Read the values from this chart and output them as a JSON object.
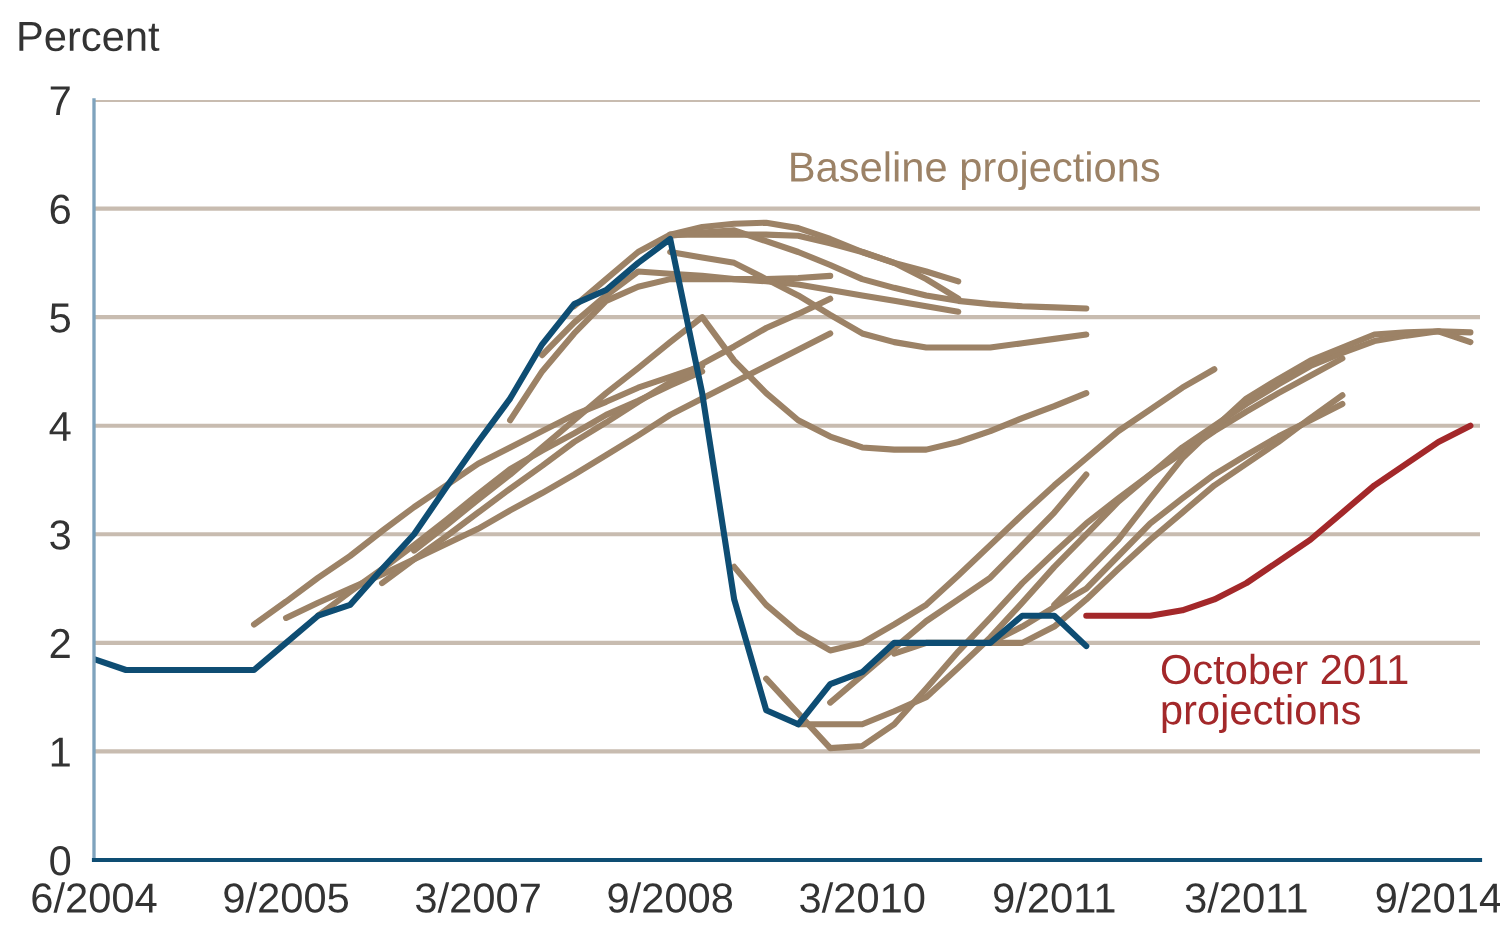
{
  "chart_data": {
    "type": "line",
    "ylabel": "Percent",
    "categories": [
      "6/2004",
      null,
      null,
      null,
      null,
      null,
      "9/2005",
      null,
      null,
      null,
      null,
      null,
      "3/2007",
      null,
      null,
      null,
      null,
      null,
      "9/2008",
      null,
      null,
      null,
      null,
      null,
      "3/2010",
      null,
      null,
      null,
      null,
      null,
      "9/2011",
      null,
      null,
      null,
      null,
      null,
      "3/2011",
      null,
      null,
      null,
      null,
      null,
      "9/2014",
      null
    ],
    "ylim": [
      0,
      7
    ],
    "yticks": [
      0,
      1,
      2,
      3,
      4,
      5,
      6,
      7
    ],
    "grid": "y",
    "legend": false,
    "marker": "none",
    "line_style": "solid",
    "series": [
      {
        "color": "#9c8266",
        "values": [
          null,
          null,
          null,
          null,
          null,
          2.17,
          2.38,
          2.6,
          2.8,
          3.03,
          3.25,
          3.45,
          3.65,
          3.8,
          3.95,
          4.1,
          4.22,
          4.35,
          4.45,
          4.55,
          null,
          null,
          null,
          null,
          null,
          null,
          null,
          null,
          null,
          null,
          null,
          null,
          null,
          null,
          null,
          null,
          null,
          null,
          null,
          null,
          null,
          null,
          null,
          null
        ]
      },
      {
        "color": "#9c8266",
        "values": [
          null,
          null,
          null,
          null,
          null,
          null,
          2.23,
          2.37,
          2.5,
          2.63,
          2.77,
          2.91,
          3.05,
          3.22,
          3.38,
          3.55,
          3.73,
          3.91,
          4.1,
          4.25,
          4.4,
          4.55,
          4.7,
          4.85,
          null,
          null,
          null,
          null,
          null,
          null,
          null,
          null,
          null,
          null,
          null,
          null,
          null,
          null,
          null,
          null,
          null,
          null,
          null,
          null
        ]
      },
      {
        "color": "#9c8266",
        "values": [
          null,
          null,
          null,
          null,
          null,
          null,
          null,
          2.25,
          2.47,
          2.68,
          2.9,
          3.13,
          3.37,
          3.6,
          3.77,
          3.93,
          4.1,
          4.23,
          4.37,
          4.5,
          null,
          null,
          null,
          null,
          null,
          null,
          null,
          null,
          null,
          null,
          null,
          null,
          null,
          null,
          null,
          null,
          null,
          null,
          null,
          null,
          null,
          null,
          null,
          null
        ]
      },
      {
        "color": "#9c8266",
        "values": [
          null,
          null,
          null,
          null,
          null,
          null,
          null,
          null,
          null,
          2.55,
          2.77,
          2.98,
          3.2,
          3.42,
          3.63,
          3.85,
          4.03,
          4.22,
          4.4,
          4.57,
          4.73,
          4.9,
          5.03,
          5.17,
          null,
          null,
          null,
          null,
          null,
          null,
          null,
          null,
          null,
          null,
          null,
          null,
          null,
          null,
          null,
          null,
          null,
          null,
          null,
          null
        ]
      },
      {
        "color": "#9c8266",
        "values": [
          null,
          null,
          null,
          null,
          null,
          null,
          null,
          null,
          null,
          null,
          2.85,
          3.08,
          3.32,
          3.55,
          3.8,
          4.05,
          4.3,
          4.53,
          4.77,
          5.0,
          4.6,
          4.3,
          4.05,
          3.9,
          3.8,
          3.78,
          3.78,
          3.85,
          3.95,
          4.07,
          4.18,
          4.3,
          null,
          null,
          null,
          null,
          null,
          null,
          null,
          null,
          null,
          null,
          null,
          null
        ]
      },
      {
        "color": "#9c8266",
        "values": [
          null,
          null,
          null,
          null,
          null,
          null,
          null,
          null,
          null,
          null,
          null,
          null,
          null,
          4.05,
          4.5,
          4.85,
          5.15,
          5.28,
          5.35,
          5.35,
          5.35,
          5.35,
          5.36,
          5.38,
          null,
          null,
          null,
          null,
          null,
          null,
          null,
          null,
          null,
          null,
          null,
          null,
          null,
          null,
          null,
          null,
          null,
          null,
          null,
          null
        ]
      },
      {
        "color": "#9c8266",
        "values": [
          null,
          null,
          null,
          null,
          null,
          null,
          null,
          null,
          null,
          null,
          null,
          null,
          null,
          null,
          4.65,
          4.95,
          5.2,
          5.42,
          5.4,
          5.38,
          5.35,
          5.33,
          5.3,
          5.25,
          5.2,
          5.15,
          5.1,
          5.05,
          null,
          null,
          null,
          null,
          null,
          null,
          null,
          null,
          null,
          null,
          null,
          null,
          null,
          null,
          null,
          null
        ]
      },
      {
        "name": "Baseline projections",
        "color": "#9c8266",
        "values": [
          null,
          null,
          null,
          null,
          null,
          null,
          null,
          null,
          null,
          null,
          null,
          null,
          null,
          null,
          null,
          5.1,
          5.35,
          5.6,
          5.76,
          5.83,
          5.86,
          5.87,
          5.82,
          5.72,
          5.6,
          5.5,
          5.42,
          5.33,
          null,
          null,
          null,
          null,
          null,
          null,
          null,
          null,
          null,
          null,
          null,
          null,
          null,
          null,
          null,
          null
        ]
      },
      {
        "color": "#9c8266",
        "values": [
          null,
          null,
          null,
          null,
          null,
          null,
          null,
          null,
          null,
          null,
          null,
          null,
          null,
          null,
          null,
          null,
          null,
          null,
          5.76,
          5.76,
          5.76,
          5.76,
          5.75,
          5.68,
          5.6,
          5.5,
          5.35,
          5.17,
          null,
          null,
          null,
          null,
          null,
          null,
          null,
          null,
          null,
          null,
          null,
          null,
          null,
          null,
          null,
          null
        ]
      },
      {
        "color": "#9c8266",
        "values": [
          null,
          null,
          null,
          null,
          null,
          null,
          null,
          null,
          null,
          null,
          null,
          null,
          null,
          null,
          null,
          null,
          null,
          null,
          5.6,
          5.55,
          5.5,
          5.35,
          5.2,
          5.02,
          4.85,
          4.77,
          4.72,
          4.72,
          4.72,
          4.76,
          4.8,
          4.84,
          null,
          null,
          null,
          null,
          null,
          null,
          null,
          null,
          null,
          null,
          null,
          null
        ]
      },
      {
        "color": "#9c8266",
        "values": [
          null,
          null,
          null,
          null,
          null,
          null,
          null,
          null,
          null,
          null,
          null,
          null,
          null,
          null,
          null,
          null,
          null,
          null,
          5.75,
          5.78,
          5.8,
          5.7,
          5.6,
          5.48,
          5.35,
          5.27,
          5.2,
          5.15,
          5.12,
          5.1,
          5.09,
          5.08,
          null,
          null,
          null,
          null,
          null,
          null,
          null,
          null,
          null,
          null,
          null,
          null
        ]
      },
      {
        "color": "#9c8266",
        "values": [
          null,
          null,
          null,
          null,
          null,
          null,
          null,
          null,
          null,
          null,
          null,
          null,
          null,
          null,
          null,
          null,
          null,
          null,
          null,
          null,
          2.7,
          2.35,
          2.1,
          1.93,
          2.0,
          2.17,
          2.35,
          2.62,
          2.9,
          3.18,
          3.45,
          3.7,
          3.95,
          4.15,
          4.35,
          4.52,
          null,
          null,
          null,
          null,
          null,
          null,
          null,
          null
        ]
      },
      {
        "color": "#9c8266",
        "values": [
          null,
          null,
          null,
          null,
          null,
          null,
          null,
          null,
          null,
          null,
          null,
          null,
          null,
          null,
          null,
          null,
          null,
          null,
          null,
          null,
          null,
          1.67,
          1.35,
          1.03,
          1.05,
          1.25,
          1.58,
          1.92,
          2.23,
          2.55,
          2.83,
          3.1,
          3.33,
          3.55,
          3.75,
          3.95,
          4.13,
          4.3,
          4.46,
          4.62,
          null,
          null,
          null,
          null
        ]
      },
      {
        "color": "#9c8266",
        "values": [
          null,
          null,
          null,
          null,
          null,
          null,
          null,
          null,
          null,
          null,
          null,
          null,
          null,
          null,
          null,
          null,
          null,
          null,
          null,
          null,
          null,
          null,
          1.25,
          1.25,
          1.25,
          1.37,
          1.5,
          1.77,
          2.05,
          2.37,
          2.7,
          3.0,
          3.3,
          3.55,
          3.8,
          4.0,
          4.2,
          4.38,
          4.55,
          4.67,
          4.78,
          4.83,
          4.87,
          4.86
        ]
      },
      {
        "color": "#9c8266",
        "values": [
          null,
          null,
          null,
          null,
          null,
          null,
          null,
          null,
          null,
          null,
          null,
          null,
          null,
          null,
          null,
          null,
          null,
          null,
          null,
          null,
          null,
          null,
          null,
          1.45,
          1.7,
          1.95,
          2.2,
          2.4,
          2.6,
          2.9,
          3.2,
          3.55,
          null,
          null,
          null,
          null,
          null,
          null,
          null,
          null,
          null,
          null,
          null,
          null
        ]
      },
      {
        "color": "#9c8266",
        "values": [
          null,
          null,
          null,
          null,
          null,
          null,
          null,
          null,
          null,
          null,
          null,
          null,
          null,
          null,
          null,
          null,
          null,
          null,
          null,
          null,
          null,
          null,
          null,
          null,
          null,
          1.9,
          2.0,
          2.0,
          2.0,
          2.0,
          2.15,
          2.4,
          2.68,
          2.95,
          3.2,
          3.45,
          3.65,
          3.85,
          4.07,
          4.28,
          null,
          null,
          null,
          null
        ]
      },
      {
        "color": "#9c8266",
        "values": [
          null,
          null,
          null,
          null,
          null,
          null,
          null,
          null,
          null,
          null,
          null,
          null,
          null,
          null,
          null,
          null,
          null,
          null,
          null,
          null,
          null,
          null,
          null,
          null,
          null,
          null,
          null,
          null,
          2.0,
          2.15,
          2.33,
          2.5,
          2.8,
          3.1,
          3.33,
          3.55,
          3.73,
          3.9,
          4.05,
          4.2,
          null,
          null,
          null,
          null
        ]
      },
      {
        "color": "#9c8266",
        "values": [
          null,
          null,
          null,
          null,
          null,
          null,
          null,
          null,
          null,
          null,
          null,
          null,
          null,
          null,
          null,
          null,
          null,
          null,
          null,
          null,
          null,
          null,
          null,
          null,
          null,
          null,
          null,
          null,
          null,
          null,
          2.35,
          2.65,
          2.95,
          3.33,
          3.7,
          3.98,
          4.25,
          4.43,
          4.6,
          4.72,
          4.84,
          4.86,
          4.87,
          4.77
        ]
      },
      {
        "color": "#0e4d73",
        "values": [
          1.85,
          1.75,
          1.75,
          1.75,
          1.75,
          1.75,
          2.0,
          2.25,
          2.35,
          2.68,
          3.0,
          3.43,
          3.85,
          4.25,
          4.75,
          5.12,
          5.25,
          5.5,
          5.72,
          4.3,
          2.4,
          1.38,
          1.25,
          1.62,
          1.73,
          2.0,
          2.0,
          2.0,
          2.0,
          2.25,
          2.25,
          1.97,
          null,
          null,
          null,
          null,
          null,
          null,
          null,
          null,
          null,
          null,
          null,
          null
        ]
      },
      {
        "name": "October 2011\nprojections",
        "color": "#a3282a",
        "values": [
          null,
          null,
          null,
          null,
          null,
          null,
          null,
          null,
          null,
          null,
          null,
          null,
          null,
          null,
          null,
          null,
          null,
          null,
          null,
          null,
          null,
          null,
          null,
          null,
          null,
          null,
          null,
          null,
          null,
          null,
          null,
          2.25,
          2.25,
          2.25,
          2.3,
          2.4,
          2.55,
          2.75,
          2.95,
          3.2,
          3.45,
          3.65,
          3.85,
          4.0
        ]
      }
    ]
  }
}
